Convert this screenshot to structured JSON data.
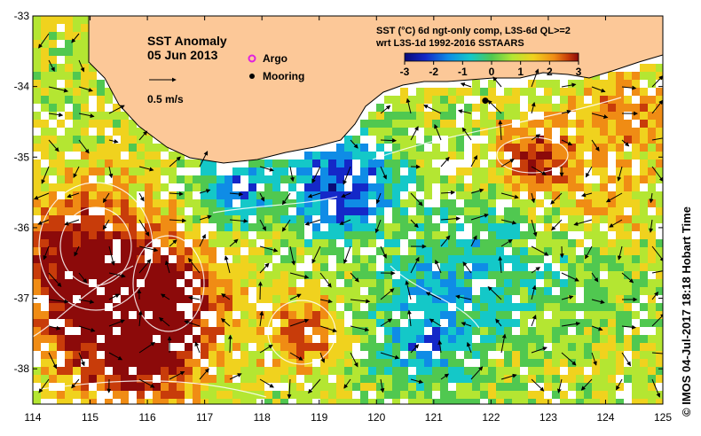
{
  "map": {
    "title": "SST Anomaly",
    "date": "05 Jun 2013",
    "scale_label": "0.5 m/s",
    "legend": {
      "argo_label": "Argo",
      "mooring_label": "Mooring",
      "argo_color": "#e020e0",
      "mooring_color": "#000000"
    },
    "product_line1": "SST (°C) 6d ngt-only comp, L3S-6d QL>=2",
    "product_line2": "wrt L3S-1d 1992-2016 SSTAARS",
    "credit": "© IMOS 04-Jul-2017 18:18 Hobart Time",
    "land_color": "#fcc898"
  },
  "colorbar": {
    "min": -3,
    "max": 3,
    "ticks": [
      "-3",
      "-2",
      "-1",
      "0",
      "1",
      "2",
      "3"
    ],
    "colors": [
      "#0a0a78",
      "#1428c8",
      "#0f8ce6",
      "#14c8c8",
      "#50c850",
      "#b4e632",
      "#f0d21e",
      "#f08c14",
      "#c83c0a",
      "#8c0a0a"
    ]
  },
  "axes": {
    "x_ticks": [
      "114",
      "115",
      "116",
      "117",
      "118",
      "119",
      "120",
      "121",
      "122",
      "123",
      "124",
      "125"
    ],
    "y_ticks": [
      "-33",
      "-34",
      "-35",
      "-36",
      "-37",
      "-38"
    ],
    "lon_range": [
      114,
      125
    ],
    "lat_range": [
      -38.5,
      -33
    ]
  },
  "mooring": {
    "lon": 121.9,
    "lat": -34.2
  }
}
